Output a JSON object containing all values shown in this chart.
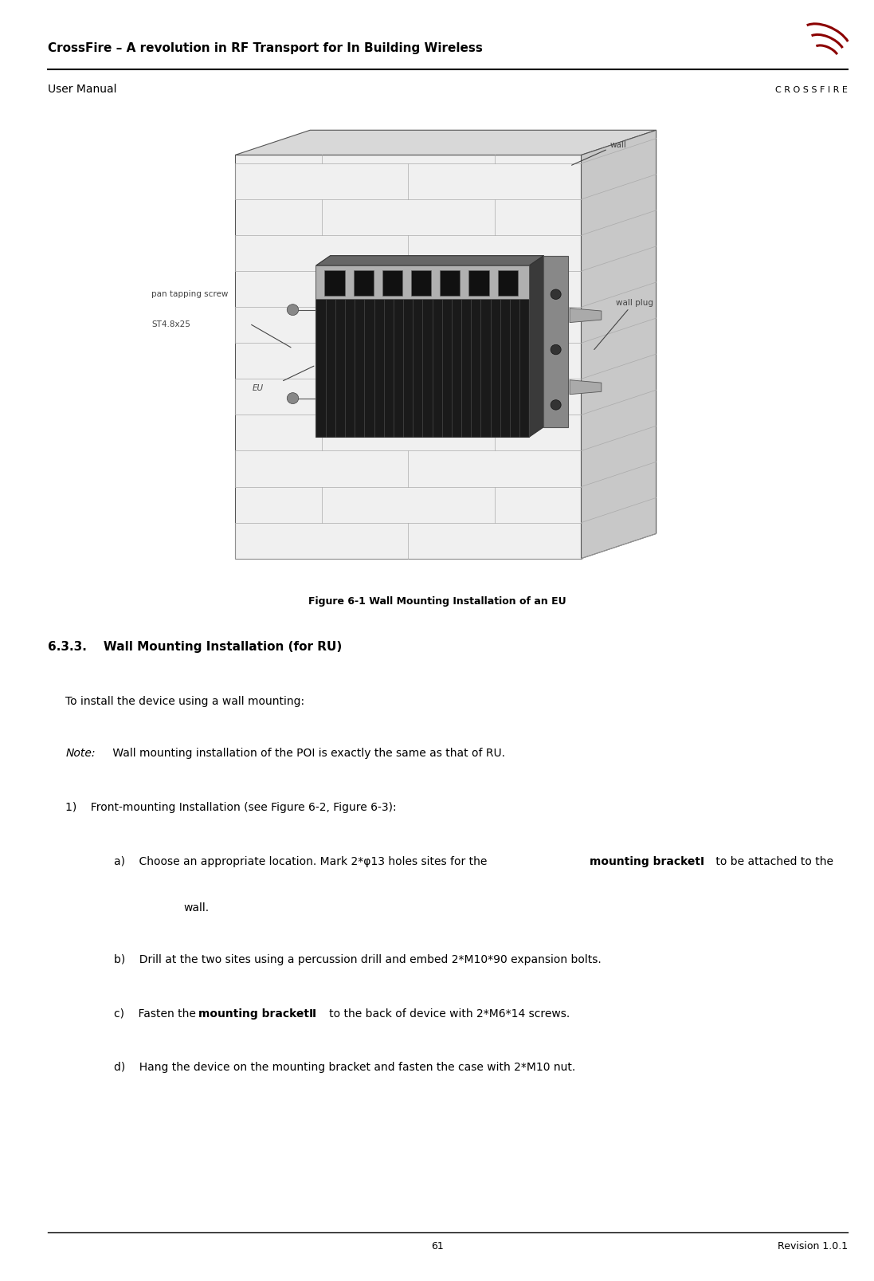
{
  "page_width": 10.97,
  "page_height": 16.08,
  "background_color": "#ffffff",
  "header_title": "CrossFire – A revolution in RF Transport for In Building Wireless",
  "header_subtitle": "User Manual",
  "header_title_fontsize": 11,
  "header_subtitle_fontsize": 10,
  "header_line_color": "#000000",
  "logo_text": "C R O S S F I R E",
  "logo_fontsize": 8,
  "footer_page_number": "61",
  "footer_revision": "Revision 1.0.1",
  "footer_fontsize": 9,
  "figure_caption": "Figure 6-1 Wall Mounting Installation of an EU",
  "figure_caption_fontsize": 9,
  "section_heading_num": "6.3.3.",
  "section_heading_text": "    Wall Mounting Installation (for RU)",
  "section_heading_fontsize": 11,
  "body_text_fontsize": 10,
  "body_indent2_fontsize": 10,
  "paragraph1": "To install the device using a wall mounting:",
  "note_italic": "Note:",
  "note_text": " Wall mounting installation of the POI is exactly the same as that of RU.",
  "list_item1": "1)    Front-mounting Installation (see Figure 6-2, Figure 6-3):",
  "sub_item_a_pre": "a)    Choose an appropriate location. Mark 2*φ13 holes sites for the ",
  "sub_item_a_bold": "mounting bracketⅠ",
  "sub_item_a_suf": " to be attached to the",
  "sub_item_a_cont": "wall.",
  "sub_item_b": "b)    Drill at the two sites using a percussion drill and embed 2*M10*90 expansion bolts.",
  "sub_item_c_pre": "c)    Fasten the ",
  "sub_item_c_bold": "mounting bracketⅡ",
  "sub_item_c_suf": "   to the back of device with 2*M6*14 screws.",
  "sub_item_d": "d)    Hang the device on the mounting bracket and fasten the case with 2*M10 nut.",
  "text_color": "#000000",
  "wave_color": "#8B0000",
  "label_color": "#444444",
  "wall_front_color": "#f0f0f0",
  "wall_top_color": "#d8d8d8",
  "wall_right_color": "#c8c8c8",
  "wall_edge_color": "#555555",
  "brick_line_color": "#aaaaaa",
  "device_body_color": "#222222",
  "device_top_color": "#555555",
  "device_right_color": "#444444",
  "device_strip_color": "#aaaaaa",
  "bracket_color": "#888888"
}
